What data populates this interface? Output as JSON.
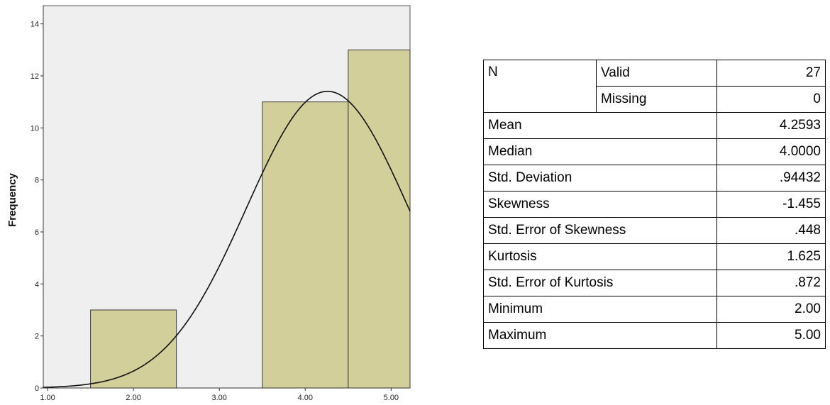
{
  "chart_data": {
    "type": "bar",
    "subtype": "histogram",
    "bins": [
      {
        "start": 1.5,
        "end": 2.5,
        "value": 3
      },
      {
        "start": 2.5,
        "end": 3.5,
        "value": 0
      },
      {
        "start": 3.5,
        "end": 4.5,
        "value": 11
      },
      {
        "start": 4.5,
        "end": 5.5,
        "value": 13
      }
    ],
    "x_ticks": [
      "1.00",
      "2.00",
      "3.00",
      "4.00",
      "5.00"
    ],
    "x_tick_values": [
      1,
      2,
      3,
      4,
      5
    ],
    "y_ticks": [
      "0",
      "2",
      "4",
      "6",
      "8",
      "10",
      "12",
      "14"
    ],
    "y_tick_values": [
      0,
      2,
      4,
      6,
      8,
      10,
      12,
      14
    ],
    "xlim": [
      0.95,
      5.22
    ],
    "ylim": [
      0,
      14.7
    ],
    "ylabel": "Frequency",
    "xlabel": "",
    "normal_curve": {
      "mean": 4.2593,
      "std": 0.94432,
      "n": 27,
      "bin_width": 1
    },
    "grid": false,
    "colors": {
      "bar": "#d3cf9a",
      "background": "#efefef",
      "curve": "#000000"
    }
  },
  "stats": {
    "n_label": "N",
    "valid_label": "Valid",
    "valid_value": "27",
    "missing_label": "Missing",
    "missing_value": "0",
    "rows": [
      {
        "label": "Mean",
        "value": "4.2593"
      },
      {
        "label": "Median",
        "value": "4.0000"
      },
      {
        "label": "Std. Deviation",
        "value": ".94432"
      },
      {
        "label": "Skewness",
        "value": "-1.455"
      },
      {
        "label": "Std. Error of Skewness",
        "value": ".448"
      },
      {
        "label": "Kurtosis",
        "value": "1.625"
      },
      {
        "label": "Std. Error of Kurtosis",
        "value": ".872"
      },
      {
        "label": "Minimum",
        "value": "2.00"
      },
      {
        "label": "Maximum",
        "value": "5.00"
      }
    ]
  }
}
